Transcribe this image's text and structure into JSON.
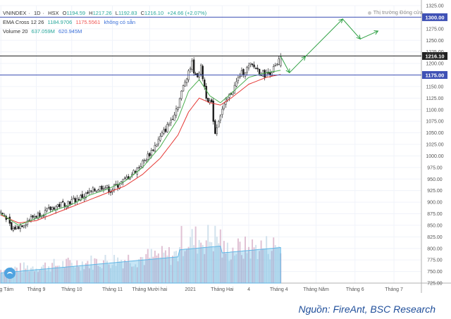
{
  "chart_data": {
    "type": "candlestick",
    "symbol": "VNINDEX",
    "interval": "1D",
    "exchange": "HSX",
    "ohlc_header": {
      "open_label": "O",
      "open": "1194.59",
      "high_label": "H",
      "high": "1217.26",
      "low_label": "L",
      "low": "1192.83",
      "close_label": "C",
      "close": "1216.10",
      "change": "+24.66 (+2.07%)"
    },
    "ema_label": "EMA Cross 12 26",
    "ema_values": [
      "1184.9706",
      "1175.5561"
    ],
    "ema_status": "không có sẵn",
    "volume_label": "Volume 20",
    "volume_values": [
      "637.059M",
      "620.945M"
    ],
    "market_status": "Thị trường Đóng cửa",
    "source_text": "Nguồn: FireAnt, BSC Research",
    "ylim": [
      725,
      1325
    ],
    "y_ticks": [
      725,
      750,
      775,
      800,
      825,
      850,
      875,
      900,
      925,
      950,
      975,
      1000,
      1025,
      1050,
      1075,
      1100,
      1125,
      1150,
      1175,
      1200,
      1225,
      1250,
      1275,
      1300,
      1325
    ],
    "x_labels": [
      {
        "label": "Tháng Tám",
        "bar": 0
      },
      {
        "label": "Tháng 9",
        "bar": 20
      },
      {
        "label": "Tháng 10",
        "bar": 40
      },
      {
        "label": "Tháng 11",
        "bar": 63
      },
      {
        "label": "Tháng Mười hai",
        "bar": 84
      },
      {
        "label": "2021",
        "bar": 107
      },
      {
        "label": "Tháng Hai",
        "bar": 125
      },
      {
        "label": "4",
        "bar": 140
      },
      {
        "label": "Tháng 4",
        "bar": 157
      },
      {
        "label": "Tháng Năm",
        "bar": 178
      },
      {
        "label": "Tháng 6",
        "bar": 200
      },
      {
        "label": "Tháng 7",
        "bar": 222
      }
    ],
    "last_bar": 158,
    "key_levels": [
      {
        "value": 1300,
        "label": "1300.00",
        "color": "#3f51b5"
      },
      {
        "value": 1216.1,
        "label": "1216.10",
        "color": "#222222"
      },
      {
        "value": 1175,
        "label": "1175.00",
        "color": "#3f51b5"
      }
    ],
    "close_path": [
      [
        0,
        878
      ],
      [
        3,
        868
      ],
      [
        6,
        840
      ],
      [
        10,
        848
      ],
      [
        14,
        857
      ],
      [
        18,
        868
      ],
      [
        22,
        875
      ],
      [
        26,
        880
      ],
      [
        30,
        890
      ],
      [
        34,
        895
      ],
      [
        38,
        900
      ],
      [
        42,
        905
      ],
      [
        46,
        912
      ],
      [
        50,
        920
      ],
      [
        54,
        928
      ],
      [
        58,
        935
      ],
      [
        62,
        925
      ],
      [
        65,
        935
      ],
      [
        70,
        948
      ],
      [
        75,
        965
      ],
      [
        80,
        985
      ],
      [
        85,
        1010
      ],
      [
        90,
        1040
      ],
      [
        95,
        1070
      ],
      [
        100,
        1110
      ],
      [
        103,
        1150
      ],
      [
        106,
        1185
      ],
      [
        108,
        1200
      ],
      [
        110,
        1170
      ],
      [
        113,
        1190
      ],
      [
        116,
        1130
      ],
      [
        119,
        1110
      ],
      [
        121,
        1050
      ],
      [
        123,
        1080
      ],
      [
        126,
        1110
      ],
      [
        129,
        1130
      ],
      [
        132,
        1150
      ],
      [
        135,
        1175
      ],
      [
        138,
        1185
      ],
      [
        141,
        1195
      ],
      [
        144,
        1190
      ],
      [
        147,
        1180
      ],
      [
        150,
        1175
      ],
      [
        153,
        1185
      ],
      [
        156,
        1195
      ],
      [
        158,
        1216
      ]
    ],
    "ema_fast_path": [
      [
        0,
        875
      ],
      [
        10,
        850
      ],
      [
        20,
        865
      ],
      [
        30,
        882
      ],
      [
        40,
        895
      ],
      [
        50,
        915
      ],
      [
        60,
        928
      ],
      [
        70,
        945
      ],
      [
        80,
        975
      ],
      [
        90,
        1020
      ],
      [
        100,
        1080
      ],
      [
        106,
        1140
      ],
      [
        112,
        1165
      ],
      [
        118,
        1130
      ],
      [
        124,
        1115
      ],
      [
        130,
        1135
      ],
      [
        140,
        1170
      ],
      [
        150,
        1180
      ],
      [
        158,
        1185
      ]
    ],
    "ema_slow_path": [
      [
        0,
        872
      ],
      [
        10,
        855
      ],
      [
        20,
        860
      ],
      [
        30,
        875
      ],
      [
        40,
        890
      ],
      [
        50,
        905
      ],
      [
        60,
        920
      ],
      [
        70,
        935
      ],
      [
        80,
        960
      ],
      [
        90,
        995
      ],
      [
        100,
        1045
      ],
      [
        106,
        1095
      ],
      [
        112,
        1125
      ],
      [
        118,
        1115
      ],
      [
        124,
        1110
      ],
      [
        130,
        1125
      ],
      [
        140,
        1155
      ],
      [
        150,
        1170
      ],
      [
        158,
        1176
      ]
    ],
    "volume_max": 1000,
    "volume_base": 360,
    "forecast_path": [
      [
        158,
        1216
      ],
      [
        163,
        1180
      ],
      [
        172,
        1215
      ],
      [
        193,
        1296
      ],
      [
        203,
        1253
      ],
      [
        213,
        1270
      ]
    ]
  }
}
